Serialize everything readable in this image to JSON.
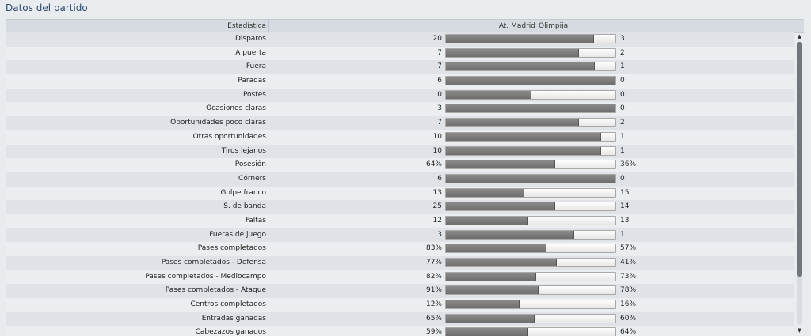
{
  "panel": {
    "title": "Datos del partido"
  },
  "header": {
    "stat": "Estadística",
    "home": "At. Madrid",
    "away": "Olimpija"
  },
  "stats": [
    {
      "label": "Disparos",
      "home": "20",
      "away": "3",
      "home_share": 0.87
    },
    {
      "label": "A puerta",
      "home": "7",
      "away": "2",
      "home_share": 0.78
    },
    {
      "label": "Fuera",
      "home": "7",
      "away": "1",
      "home_share": 0.875
    },
    {
      "label": "Paradas",
      "home": "6",
      "away": "0",
      "home_share": 1.0
    },
    {
      "label": "Postes",
      "home": "0",
      "away": "0",
      "home_share": 0.5
    },
    {
      "label": "Ocasiones claras",
      "home": "3",
      "away": "0",
      "home_share": 1.0
    },
    {
      "label": "Oportunidades poco claras",
      "home": "7",
      "away": "2",
      "home_share": 0.78
    },
    {
      "label": "Otras oportunidades",
      "home": "10",
      "away": "1",
      "home_share": 0.91
    },
    {
      "label": "Tiros lejanos",
      "home": "10",
      "away": "1",
      "home_share": 0.91
    },
    {
      "label": "Posesión",
      "home": "64%",
      "away": "36%",
      "home_share": 0.64
    },
    {
      "label": "Córners",
      "home": "6",
      "away": "0",
      "home_share": 1.0
    },
    {
      "label": "Golpe franco",
      "home": "13",
      "away": "15",
      "home_share": 0.46
    },
    {
      "label": "S. de banda",
      "home": "25",
      "away": "14",
      "home_share": 0.64
    },
    {
      "label": "Faltas",
      "home": "12",
      "away": "13",
      "home_share": 0.48
    },
    {
      "label": "Fueras de juego",
      "home": "3",
      "away": "1",
      "home_share": 0.75
    },
    {
      "label": "Pases completados",
      "home": "83%",
      "away": "57%",
      "home_share": 0.59
    },
    {
      "label": "Pases completados - Defensa",
      "home": "77%",
      "away": "41%",
      "home_share": 0.65
    },
    {
      "label": "Pases completados - Mediocampo",
      "home": "82%",
      "away": "73%",
      "home_share": 0.53
    },
    {
      "label": "Pases completados - Ataque",
      "home": "91%",
      "away": "78%",
      "home_share": 0.54
    },
    {
      "label": "Centros completados",
      "home": "12%",
      "away": "16%",
      "home_share": 0.43
    },
    {
      "label": "Entradas ganadas",
      "home": "65%",
      "away": "60%",
      "home_share": 0.52
    },
    {
      "label": "Cabezazos ganados",
      "home": "59%",
      "away": "64%",
      "home_share": 0.48
    }
  ],
  "scrollbar": {
    "up_icon": "▲",
    "down_icon": "▼"
  }
}
